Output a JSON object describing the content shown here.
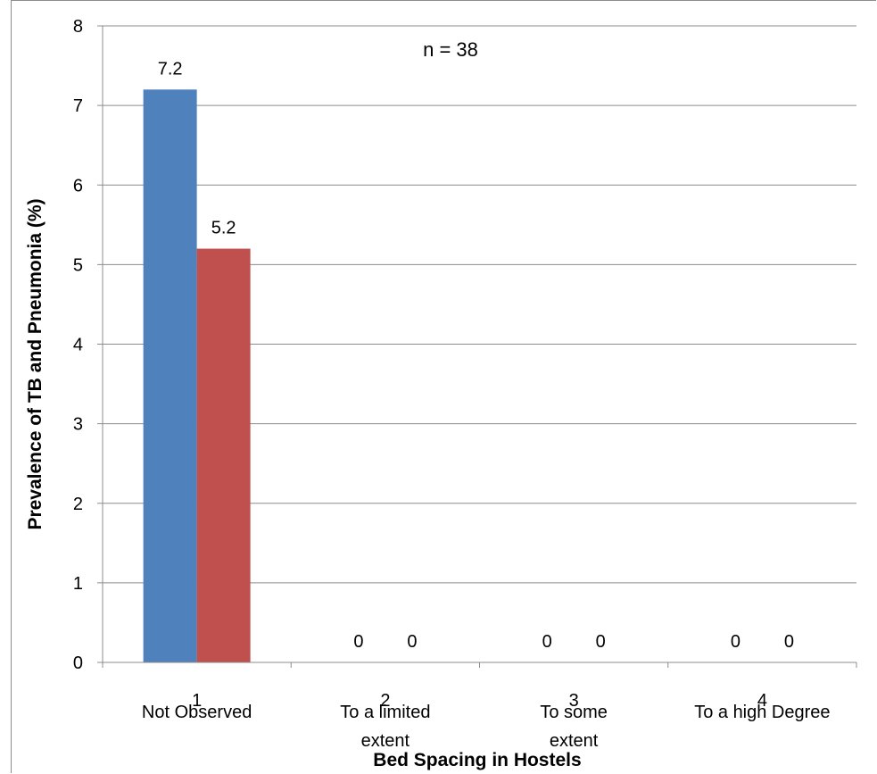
{
  "chart_data": {
    "type": "bar",
    "title": "",
    "annotation": "n = 38",
    "xlabel": "Bed Spacing in Hostels",
    "ylabel": "Prevalence of TB and Pneumonia (%)",
    "ylim": [
      0,
      8
    ],
    "yticks": [
      "0",
      "1",
      "2",
      "3",
      "4",
      "5",
      "6",
      "7",
      "8"
    ],
    "x_tick_numbers": [
      "1",
      "2",
      "3",
      "4"
    ],
    "categories": [
      "Not Observed",
      "To a limited extent",
      "To some extent",
      "To a high Degree"
    ],
    "category_lines": [
      [
        "Not Observed"
      ],
      [
        "To a limited",
        "extent"
      ],
      [
        "To some",
        "extent"
      ],
      [
        "To a high Degree"
      ]
    ],
    "series": [
      {
        "color": "#4f81bd",
        "values": [
          7.2,
          0,
          0,
          0
        ],
        "labels": [
          "7.2",
          "0",
          "0",
          "0"
        ]
      },
      {
        "color": "#c0504d",
        "values": [
          5.2,
          0,
          0,
          0
        ],
        "labels": [
          "5.2",
          "0",
          "0",
          "0"
        ]
      }
    ],
    "grid": true,
    "legend": "none"
  }
}
